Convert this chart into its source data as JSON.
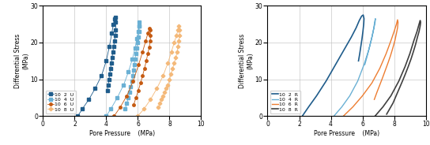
{
  "left": {
    "xlabel": "Pore Pressure",
    "xlabel2": "(MPa)",
    "ylabel": "Differential Stress",
    "ylabel2": "(MPa)",
    "xlim": [
      0.0,
      10.0
    ],
    "ylim": [
      0.0,
      30.0
    ],
    "xticks": [
      0.0,
      2.0,
      4.0,
      6.0,
      8.0,
      10.0
    ],
    "yticks": [
      0.0,
      10.0,
      20.0,
      30.0
    ],
    "legend_labels": [
      "10  2  U",
      "10  4  U",
      "10  6  U",
      "10  8  U"
    ],
    "colors": [
      "#1f5c8b",
      "#6ab0d4",
      "#c55a11",
      "#f4b97a"
    ],
    "curves": {
      "10_2_U": {
        "pore": [
          2.2,
          2.5,
          2.9,
          3.3,
          3.7,
          4.0,
          4.2,
          4.35,
          4.45,
          4.52,
          4.57,
          4.6,
          4.6,
          4.57,
          4.52,
          4.47,
          4.42,
          4.37,
          4.32,
          4.27,
          4.22,
          4.17,
          4.12,
          4.07
        ],
        "diff": [
          0.0,
          2.0,
          4.5,
          7.5,
          11.0,
          15.0,
          19.0,
          22.5,
          25.0,
          26.5,
          26.8,
          25.5,
          23.5,
          22.0,
          20.5,
          19.0,
          17.5,
          16.0,
          14.5,
          13.0,
          11.5,
          10.0,
          8.5,
          7.0
        ]
      },
      "10_4_U": {
        "pore": [
          4.0,
          4.3,
          4.7,
          5.1,
          5.4,
          5.65,
          5.82,
          5.94,
          6.02,
          6.07,
          6.1,
          6.1,
          6.07,
          6.02,
          5.97,
          5.92,
          5.87,
          5.82,
          5.77,
          5.72,
          5.67,
          5.62,
          5.55,
          5.48,
          5.4,
          5.3,
          5.2
        ],
        "diff": [
          0.0,
          2.0,
          5.0,
          8.5,
          12.0,
          15.5,
          18.5,
          21.0,
          23.0,
          24.5,
          25.5,
          24.5,
          23.0,
          21.5,
          20.0,
          18.5,
          17.0,
          15.5,
          14.0,
          12.5,
          11.0,
          9.5,
          8.0,
          6.5,
          5.0,
          3.5,
          2.0
        ]
      },
      "10_6_U": {
        "pore": [
          4.5,
          4.9,
          5.3,
          5.7,
          6.05,
          6.3,
          6.5,
          6.63,
          6.72,
          6.77,
          6.8,
          6.78,
          6.72,
          6.63,
          6.53,
          6.42,
          6.3,
          6.17,
          6.03,
          5.88,
          5.73
        ],
        "diff": [
          0.0,
          2.5,
          5.5,
          9.5,
          14.0,
          17.5,
          20.5,
          22.5,
          23.8,
          23.5,
          22.0,
          20.5,
          18.8,
          17.0,
          15.0,
          13.0,
          11.0,
          9.0,
          7.0,
          5.0,
          3.0
        ]
      },
      "10_8_U": {
        "pore": [
          6.0,
          6.4,
          6.8,
          7.2,
          7.6,
          7.9,
          8.12,
          8.3,
          8.44,
          8.54,
          8.6,
          8.63,
          8.63,
          8.6,
          8.55,
          8.48,
          8.4,
          8.3,
          8.2,
          8.1,
          8.0,
          7.9,
          7.8,
          7.7,
          7.6,
          7.5,
          7.4,
          7.3
        ],
        "diff": [
          0.0,
          2.0,
          4.5,
          7.5,
          11.0,
          14.5,
          17.5,
          20.0,
          22.0,
          23.5,
          24.5,
          23.5,
          22.0,
          20.5,
          19.0,
          17.5,
          16.0,
          14.5,
          13.0,
          11.5,
          10.0,
          8.5,
          7.5,
          6.5,
          5.5,
          4.5,
          3.5,
          2.5
        ]
      }
    }
  },
  "right": {
    "xlabel": "Pore Pressure",
    "xlabel2": "(MPa)",
    "ylabel": "Differential Stress",
    "ylabel2": "(MPa)",
    "xlim": [
      0.0,
      10.0
    ],
    "ylim": [
      0.0,
      30.0
    ],
    "xticks": [
      0.0,
      2.0,
      4.0,
      6.0,
      8.0,
      10.0
    ],
    "yticks": [
      0.0,
      10.0,
      20.0,
      30.0
    ],
    "legend_labels": [
      "10  2  R",
      "10  4  R",
      "10  6  R",
      "10  8  R"
    ],
    "colors": [
      "#1f5c8b",
      "#6ab0d4",
      "#ed7d31",
      "#404040"
    ],
    "curves": {
      "10_2_R": {
        "pore": [
          2.2,
          2.6,
          3.1,
          3.7,
          4.3,
          4.9,
          5.3,
          5.6,
          5.8,
          5.95,
          6.05,
          6.1,
          6.08,
          6.03,
          5.97,
          5.9,
          5.83,
          5.75
        ],
        "diff": [
          0.0,
          2.5,
          5.5,
          9.5,
          14.0,
          18.5,
          21.5,
          24.0,
          26.0,
          27.2,
          27.5,
          26.5,
          25.0,
          23.0,
          21.0,
          19.0,
          17.0,
          15.0
        ]
      },
      "10_4_R": {
        "pore": [
          4.2,
          4.7,
          5.2,
          5.7,
          6.1,
          6.4,
          6.6,
          6.72,
          6.78,
          6.82,
          6.8,
          6.73,
          6.63,
          6.52,
          6.4,
          6.28,
          6.15
        ],
        "diff": [
          0.0,
          2.5,
          5.5,
          9.5,
          14.0,
          18.0,
          21.5,
          24.0,
          25.8,
          26.5,
          25.5,
          24.0,
          22.0,
          20.0,
          18.0,
          16.0,
          14.0
        ]
      },
      "10_6_R": {
        "pore": [
          4.8,
          5.4,
          6.0,
          6.6,
          7.1,
          7.5,
          7.8,
          8.0,
          8.15,
          8.22,
          8.25,
          8.22,
          8.15,
          8.05,
          7.92,
          7.78,
          7.62,
          7.45,
          7.28,
          7.1,
          6.92,
          6.75
        ],
        "diff": [
          0.0,
          2.5,
          5.5,
          9.0,
          13.0,
          17.0,
          20.5,
          23.0,
          25.0,
          26.2,
          25.5,
          24.0,
          22.5,
          20.5,
          18.5,
          16.5,
          14.5,
          12.5,
          10.5,
          8.5,
          6.5,
          4.5
        ]
      },
      "10_8_R": {
        "pore": [
          6.8,
          7.3,
          7.8,
          8.3,
          8.7,
          9.0,
          9.25,
          9.45,
          9.58,
          9.65,
          9.68,
          9.65,
          9.58,
          9.48,
          9.36,
          9.22,
          9.07,
          8.9,
          8.72,
          8.53,
          8.33,
          8.13,
          7.93,
          7.73,
          7.53
        ],
        "diff": [
          0.0,
          2.5,
          5.5,
          9.5,
          13.5,
          17.0,
          20.5,
          23.0,
          25.0,
          26.0,
          25.5,
          24.5,
          23.0,
          21.5,
          19.5,
          17.5,
          15.5,
          13.5,
          11.5,
          9.5,
          7.5,
          5.5,
          3.5,
          2.0,
          0.5
        ]
      }
    }
  }
}
